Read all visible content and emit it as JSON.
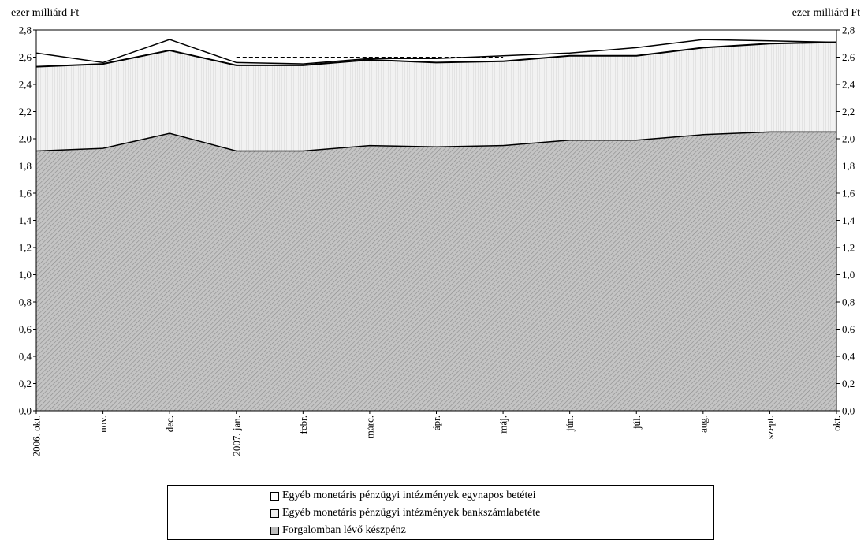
{
  "chart_data": {
    "type": "area",
    "ylabel_left": "ezer milliárd Ft",
    "ylabel_right": "ezer milliárd Ft",
    "ylim": [
      0,
      2.8
    ],
    "yticks": [
      "0,0",
      "0,2",
      "0,4",
      "0,6",
      "0,8",
      "1,0",
      "1,2",
      "1,4",
      "1,6",
      "1,8",
      "2,0",
      "2,2",
      "2,4",
      "2,6",
      "2,8"
    ],
    "categories": [
      "2006. okt.",
      "nov.",
      "dec.",
      "2007. jan.",
      "febr.",
      "márc.",
      "ápr.",
      "máj.",
      "jún.",
      "júl.",
      "aug.",
      "szept.",
      "okt."
    ],
    "series": [
      {
        "name": "Forgalomban lévő készpénz",
        "values": [
          1.91,
          1.93,
          2.04,
          1.91,
          1.91,
          1.95,
          1.94,
          1.95,
          1.99,
          1.99,
          2.03,
          2.05,
          2.05
        ]
      },
      {
        "name": "Egyéb monetáris pénzügyi intézmények bankszámlabetéte",
        "values": [
          0.62,
          0.62,
          0.61,
          0.63,
          0.63,
          0.63,
          0.62,
          0.62,
          0.62,
          0.62,
          0.64,
          0.65,
          0.66
        ]
      },
      {
        "name": "Egyéb monetáris pénzügyi intézmények egynapos betétei",
        "values": [
          0.1,
          0.01,
          0.08,
          0.02,
          0.01,
          0.01,
          0.03,
          0.04,
          0.02,
          0.06,
          0.06,
          0.02,
          0.0
        ]
      }
    ],
    "reference_line": {
      "values": [
        null,
        2.6,
        null,
        2.6,
        2.6,
        2.6,
        2.6,
        2.6,
        null,
        null,
        null,
        null,
        null
      ]
    },
    "legend_order": [
      "Egyéb monetáris pénzügyi intézmények egynapos betétei",
      "Egyéb monetáris pénzügyi intézmények bankszámlabetéte",
      "Forgalomban lévő készpénz"
    ],
    "legend_placement": "bottom",
    "grid": false
  }
}
